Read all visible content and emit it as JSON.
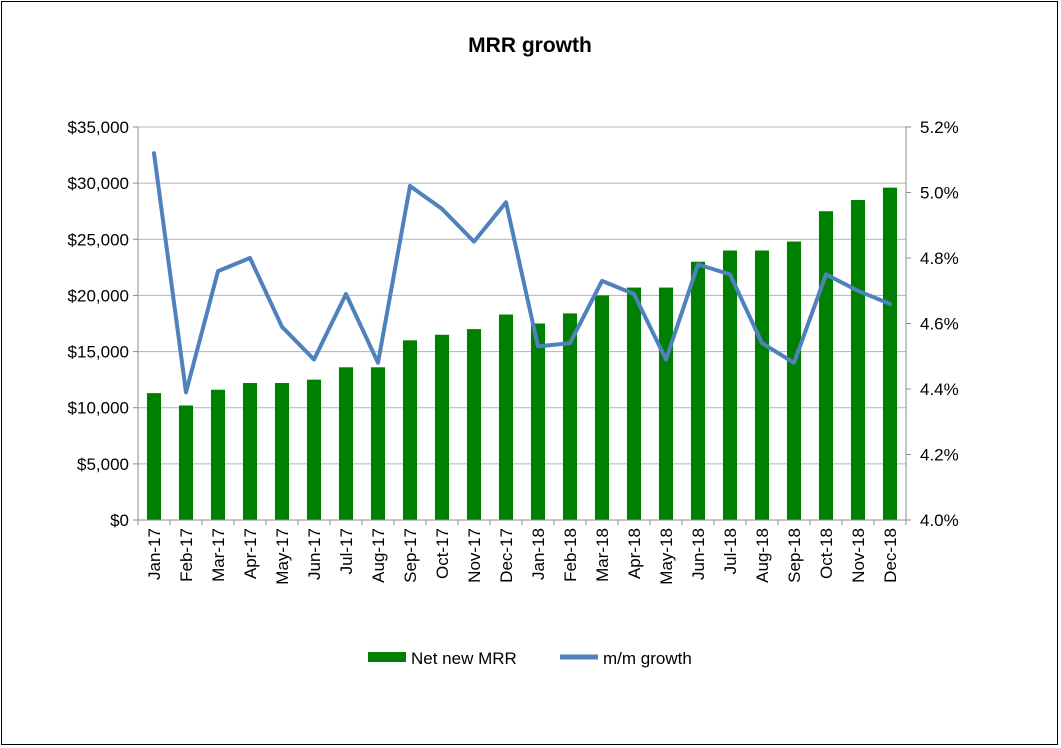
{
  "chart_data": {
    "type": "bar",
    "title": "MRR growth",
    "categories": [
      "Jan-17",
      "Feb-17",
      "Mar-17",
      "Apr-17",
      "May-17",
      "Jun-17",
      "Jul-17",
      "Aug-17",
      "Sep-17",
      "Oct-17",
      "Nov-17",
      "Dec-17",
      "Jan-18",
      "Feb-18",
      "Mar-18",
      "Apr-18",
      "May-18",
      "Jun-18",
      "Jul-18",
      "Aug-18",
      "Sep-18",
      "Oct-18",
      "Nov-18",
      "Dec-18"
    ],
    "series": [
      {
        "name": "Net new MRR",
        "type": "bar",
        "axis": "left",
        "color": "#008000",
        "values": [
          11300,
          10200,
          11600,
          12200,
          12200,
          12500,
          13600,
          13600,
          16000,
          16500,
          17000,
          18300,
          17500,
          18400,
          20000,
          20700,
          20700,
          23000,
          24000,
          24000,
          24800,
          27500,
          28500,
          29600
        ]
      },
      {
        "name": "m/m growth",
        "type": "line",
        "axis": "right",
        "color": "#4f81bd",
        "values": [
          5.12,
          4.39,
          4.76,
          4.8,
          4.59,
          4.49,
          4.69,
          4.48,
          5.02,
          4.95,
          4.85,
          4.97,
          4.53,
          4.54,
          4.73,
          4.69,
          4.49,
          4.78,
          4.75,
          4.54,
          4.48,
          4.75,
          4.7,
          4.66
        ]
      }
    ],
    "y_left": {
      "ylim": [
        0,
        35000
      ],
      "tick_values": [
        0,
        5000,
        10000,
        15000,
        20000,
        25000,
        30000,
        35000
      ],
      "tick_labels": [
        "$0",
        "$5,000",
        "$10,000",
        "$15,000",
        "$20,000",
        "$25,000",
        "$30,000",
        "$35,000"
      ]
    },
    "y_right": {
      "ylim": [
        4.0,
        5.2
      ],
      "tick_values": [
        4.0,
        4.2,
        4.4,
        4.6,
        4.8,
        5.0,
        5.2
      ],
      "tick_labels": [
        "4.0%",
        "4.2%",
        "4.4%",
        "4.6%",
        "4.8%",
        "5.0%",
        "5.2%"
      ]
    },
    "grid": true,
    "legend": "bottom"
  }
}
